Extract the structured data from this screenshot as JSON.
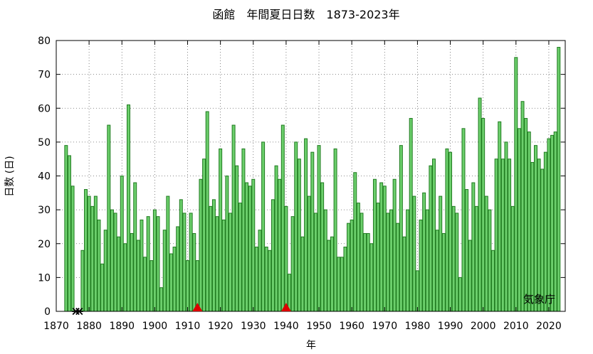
{
  "chart_data": {
    "type": "bar",
    "title": "函館　年間夏日日数　1873-2023年",
    "xlabel": "年",
    "ylabel": "日数 (日)",
    "credit": "気象庁",
    "xlim": [
      1870,
      2025
    ],
    "ylim": [
      0,
      80
    ],
    "x_ticks": [
      1870,
      1880,
      1890,
      1900,
      1910,
      1920,
      1930,
      1940,
      1950,
      1960,
      1970,
      1980,
      1990,
      2000,
      2010,
      2020
    ],
    "y_ticks": [
      0,
      10,
      20,
      30,
      40,
      50,
      60,
      70,
      80
    ],
    "grid": true,
    "colors": {
      "bar_fill": "#6ccf6c",
      "bar_stroke": "#1f7a1f",
      "missing_marker": "#000000",
      "change_marker": "#dd0000"
    },
    "x": [
      1873,
      1874,
      1875,
      1876,
      1877,
      1878,
      1879,
      1880,
      1881,
      1882,
      1883,
      1884,
      1885,
      1886,
      1887,
      1888,
      1889,
      1890,
      1891,
      1892,
      1893,
      1894,
      1895,
      1896,
      1897,
      1898,
      1899,
      1900,
      1901,
      1902,
      1903,
      1904,
      1905,
      1906,
      1907,
      1908,
      1909,
      1910,
      1911,
      1912,
      1913,
      1914,
      1915,
      1916,
      1917,
      1918,
      1919,
      1920,
      1921,
      1922,
      1923,
      1924,
      1925,
      1926,
      1927,
      1928,
      1929,
      1930,
      1931,
      1932,
      1933,
      1934,
      1935,
      1936,
      1937,
      1938,
      1939,
      1940,
      1941,
      1942,
      1943,
      1944,
      1945,
      1946,
      1947,
      1948,
      1949,
      1950,
      1951,
      1952,
      1953,
      1954,
      1955,
      1956,
      1957,
      1958,
      1959,
      1960,
      1961,
      1962,
      1963,
      1964,
      1965,
      1966,
      1967,
      1968,
      1969,
      1970,
      1971,
      1972,
      1973,
      1974,
      1975,
      1976,
      1977,
      1978,
      1979,
      1980,
      1981,
      1982,
      1983,
      1984,
      1985,
      1986,
      1987,
      1988,
      1989,
      1990,
      1991,
      1992,
      1993,
      1994,
      1995,
      1996,
      1997,
      1998,
      1999,
      2000,
      2001,
      2002,
      2003,
      2004,
      2005,
      2006,
      2007,
      2008,
      2009,
      2010,
      2011,
      2012,
      2013,
      2014,
      2015,
      2016,
      2017,
      2018,
      2019,
      2020,
      2021,
      2022,
      2023
    ],
    "values": [
      49,
      46,
      37,
      null,
      null,
      18,
      36,
      34,
      31,
      34,
      27,
      14,
      24,
      55,
      30,
      29,
      22,
      40,
      20,
      61,
      23,
      38,
      21,
      27,
      16,
      28,
      15,
      30,
      28,
      7,
      24,
      34,
      17,
      19,
      25,
      33,
      29,
      15,
      29,
      23,
      15,
      39,
      45,
      59,
      31,
      33,
      28,
      48,
      27,
      40,
      29,
      55,
      43,
      32,
      48,
      38,
      37,
      39,
      19,
      24,
      50,
      19,
      18,
      33,
      43,
      39,
      55,
      31,
      11,
      28,
      50,
      45,
      22,
      51,
      34,
      47,
      29,
      49,
      38,
      30,
      21,
      22,
      48,
      16,
      16,
      19,
      26,
      27,
      41,
      32,
      29,
      23,
      23,
      20,
      39,
      32,
      38,
      37,
      29,
      30,
      39,
      26,
      49,
      22,
      30,
      57,
      34,
      12,
      27,
      35,
      30,
      43,
      45,
      24,
      34,
      23,
      48,
      47,
      31,
      29,
      10,
      54,
      36,
      21,
      38,
      31,
      63,
      57,
      34,
      30,
      18,
      45,
      56,
      45,
      50,
      45,
      31,
      75,
      54,
      62,
      57,
      53,
      44,
      49,
      45,
      42,
      47,
      51,
      52,
      53,
      78
    ],
    "missing_years": [
      1876,
      1877
    ],
    "change_markers": [
      1913,
      1940
    ]
  }
}
